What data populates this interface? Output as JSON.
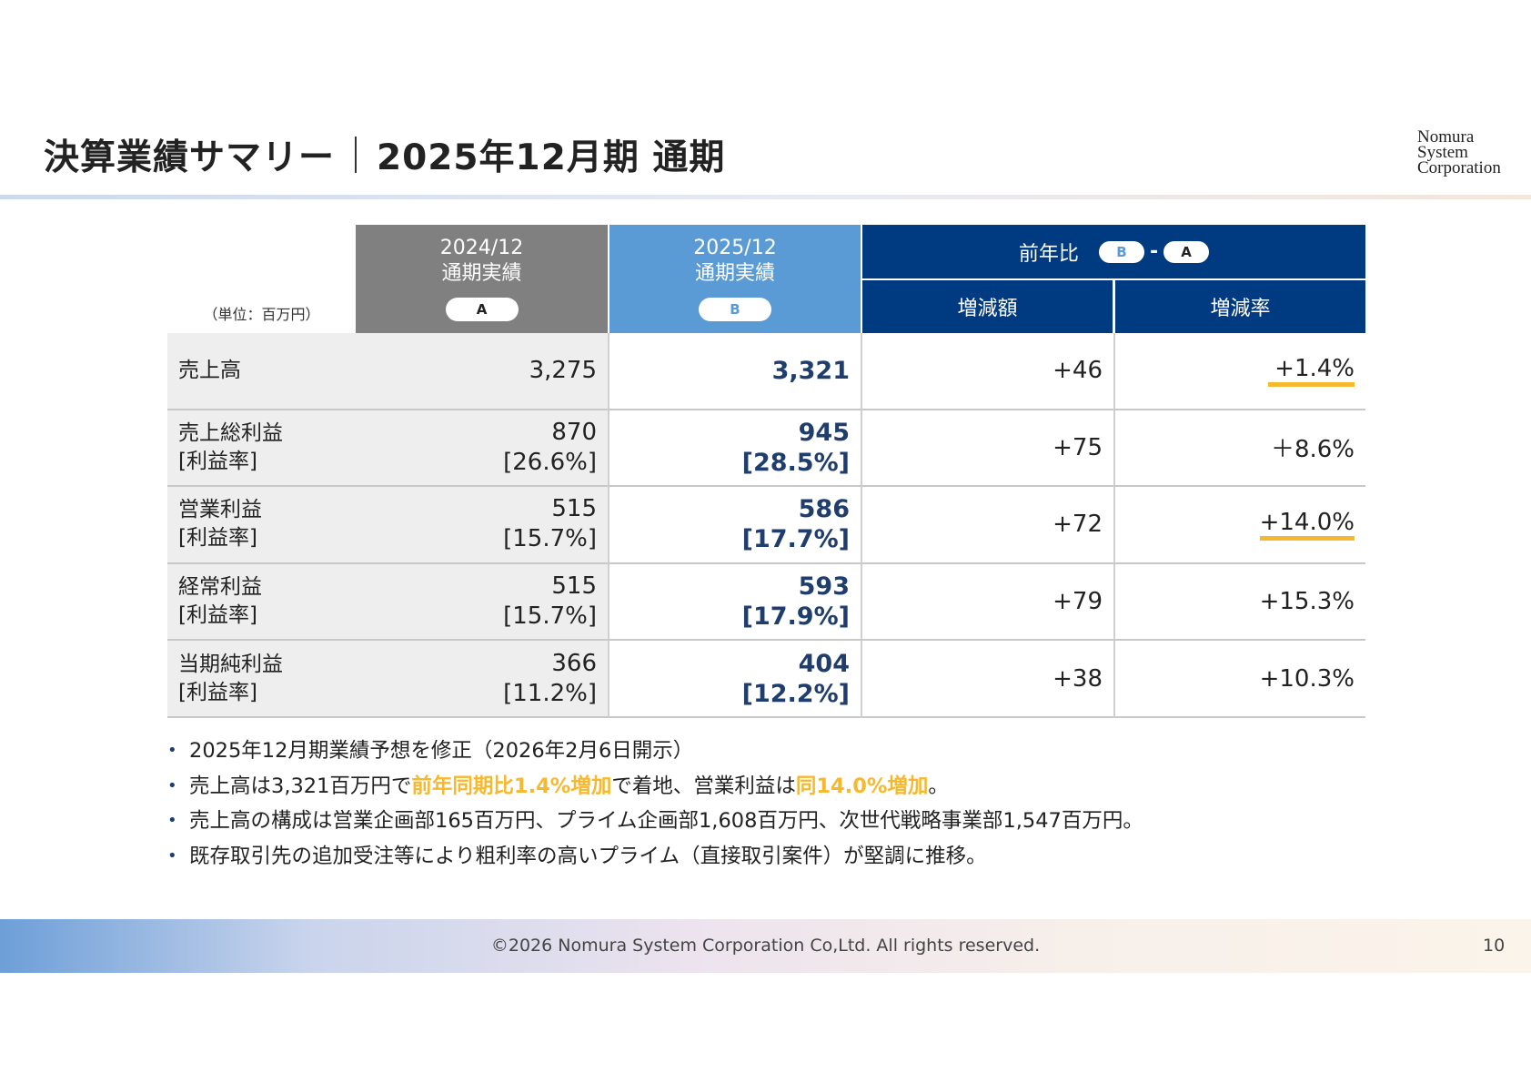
{
  "header": {
    "title": "決算業績サマリー",
    "subtitle": "2025年12月期 通期",
    "logo": [
      "Nomura",
      "System",
      "Corporation"
    ]
  },
  "table": {
    "unit": "（単位：百万円）",
    "col_a": {
      "period": "2024/12",
      "label": "通期実績",
      "badge": "A"
    },
    "col_b": {
      "period": "2025/12",
      "label": "通期実績",
      "badge": "B"
    },
    "col_yoy": {
      "label": "前年比",
      "badge_b": "B",
      "dash": "-",
      "badge_a": "A",
      "diff": "増減額",
      "rate": "増減率"
    },
    "rows": [
      {
        "label": "売上高",
        "sub": "",
        "a": "3,275",
        "a_sub": "",
        "b": "3,321",
        "b_sub": "",
        "diff": "+46",
        "rate": "+1.4%",
        "highlight": true
      },
      {
        "label": "売上総利益",
        "sub": "[利益率]",
        "a": "870",
        "a_sub": "[26.6%]",
        "b": "945",
        "b_sub": "[28.5%]",
        "diff": "+75",
        "rate": "＋8.6%",
        "highlight": false
      },
      {
        "label": "営業利益",
        "sub": "[利益率]",
        "a": "515",
        "a_sub": "[15.7%]",
        "b": "586",
        "b_sub": "[17.7%]",
        "diff": "+72",
        "rate": "+14.0%",
        "highlight": true
      },
      {
        "label": "経常利益",
        "sub": "[利益率]",
        "a": "515",
        "a_sub": "[15.7%]",
        "b": "593",
        "b_sub": "[17.9%]",
        "diff": "+79",
        "rate": "+15.3%",
        "highlight": false
      },
      {
        "label": "当期純利益",
        "sub": "[利益率]",
        "a": "366",
        "a_sub": "[11.2%]",
        "b": "404",
        "b_sub": "[12.2%]",
        "diff": "+38",
        "rate": "+10.3%",
        "highlight": false
      }
    ]
  },
  "bullets": [
    {
      "parts": [
        {
          "t": "2025年12月期業績予想を修正（2026年2月6日開示）"
        }
      ]
    },
    {
      "parts": [
        {
          "t": "売上高は3,321百万円で"
        },
        {
          "t": "前年同期比1.4%増加",
          "em": true
        },
        {
          "t": "で着地、営業利益は"
        },
        {
          "t": "同14.0%増加",
          "em": true
        },
        {
          "t": "。"
        }
      ]
    },
    {
      "parts": [
        {
          "t": "売上高の構成は営業企画部165百万円、プライム企画部1,608百万円、次世代戦略事業部1,547百万円。"
        }
      ]
    },
    {
      "parts": [
        {
          "t": "既存取引先の追加受注等により粗利率の高いプライム（直接取引案件）が堅調に推移。"
        }
      ]
    }
  ],
  "footer": {
    "copyright": "©2026 Nomura System Corporation Co,Ltd. All rights reserved.",
    "page": "10"
  },
  "colors": {
    "col_a": "#808080",
    "col_b": "#5b9bd5",
    "col_yoy": "#003a80",
    "accent": "#f5b82e",
    "value_b": "#1f3e6e"
  }
}
